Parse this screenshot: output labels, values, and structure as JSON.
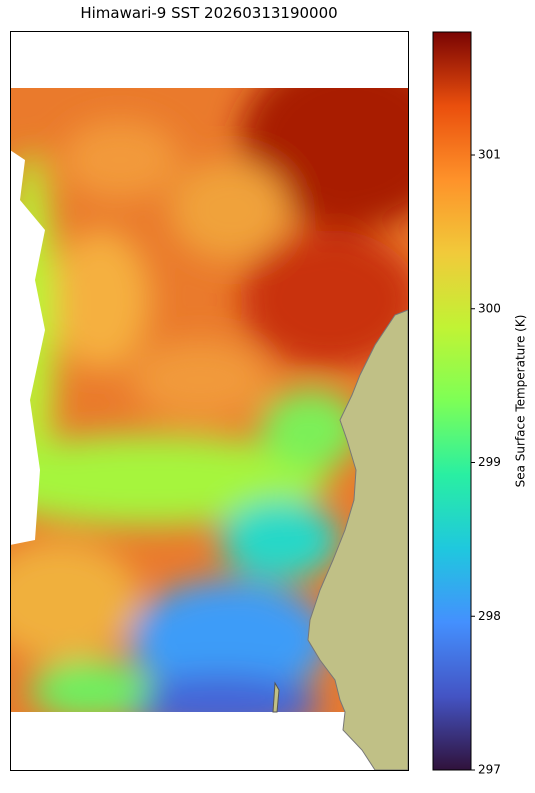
{
  "title": "Himawari-9 SST 20260313190000",
  "colorbar": {
    "label": "Sea Surface Temperature (K)",
    "colormap": "turbo",
    "clim": [
      297,
      301.8
    ],
    "ticks": [
      297,
      298,
      299,
      300,
      301
    ]
  }
}
